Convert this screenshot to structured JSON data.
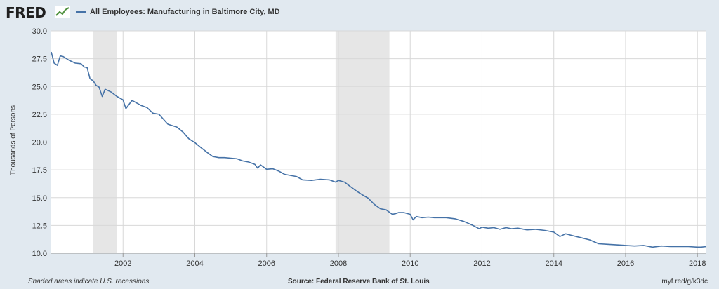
{
  "header": {
    "logo_text": "FRED",
    "logo_icon": "chart-trend-icon",
    "legend_label": "All Employees: Manufacturing in Baltimore City, MD",
    "series_color": "#4572a7"
  },
  "footer": {
    "note": "Shaded areas indicate U.S. recessions",
    "source": "Source: Federal Reserve Bank of St. Louis",
    "link": "myf.red/g/k3dc"
  },
  "chart_data": {
    "type": "line",
    "ylabel": "Thousands of Persons",
    "ylim": [
      10.0,
      30.0
    ],
    "yticks": [
      "10.0",
      "12.5",
      "15.0",
      "17.5",
      "20.0",
      "22.5",
      "25.0",
      "27.5",
      "30.0"
    ],
    "xlim": [
      2000.0,
      2018.25
    ],
    "xticks": [
      "2002",
      "2004",
      "2006",
      "2008",
      "2010",
      "2012",
      "2014",
      "2016",
      "2018"
    ],
    "grid": true,
    "recessions": [
      [
        2001.17,
        2001.83
      ],
      [
        2007.92,
        2009.42
      ]
    ],
    "recession_color": "#e6e6e6",
    "series": [
      {
        "x": [
          2000.0,
          2000.08,
          2000.17,
          2000.25,
          2000.33,
          2000.5,
          2000.67,
          2000.83,
          2000.92,
          2001.0,
          2001.08,
          2001.17,
          2001.25,
          2001.33,
          2001.42,
          2001.5,
          2001.67,
          2001.83,
          2002.0,
          2002.08,
          2002.25,
          2002.5,
          2002.67,
          2002.83,
          2003.0,
          2003.25,
          2003.5,
          2003.67,
          2003.83,
          2004.0,
          2004.17,
          2004.33,
          2004.5,
          2004.67,
          2004.83,
          2005.0,
          2005.17,
          2005.33,
          2005.5,
          2005.67,
          2005.75,
          2005.83,
          2006.0,
          2006.17,
          2006.33,
          2006.5,
          2006.67,
          2006.83,
          2007.0,
          2007.25,
          2007.5,
          2007.75,
          2007.92,
          2008.0,
          2008.17,
          2008.33,
          2008.5,
          2008.67,
          2008.83,
          2009.0,
          2009.17,
          2009.33,
          2009.5,
          2009.58,
          2009.67,
          2009.83,
          2010.0,
          2010.08,
          2010.17,
          2010.33,
          2010.5,
          2010.67,
          2010.83,
          2011.0,
          2011.25,
          2011.5,
          2011.75,
          2011.92,
          2012.0,
          2012.17,
          2012.33,
          2012.5,
          2012.67,
          2012.83,
          2013.0,
          2013.25,
          2013.5,
          2013.75,
          2013.92,
          2014.0,
          2014.17,
          2014.33,
          2014.5,
          2014.75,
          2015.0,
          2015.25,
          2015.5,
          2015.75,
          2016.0,
          2016.25,
          2016.5,
          2016.75,
          2017.0,
          2017.25,
          2017.5,
          2017.75,
          2018.0,
          2018.1,
          2018.25
        ],
        "values": [
          28.1,
          27.1,
          26.9,
          27.75,
          27.7,
          27.35,
          27.1,
          27.05,
          26.75,
          26.7,
          25.7,
          25.5,
          25.1,
          24.95,
          24.1,
          24.75,
          24.5,
          24.1,
          23.8,
          23.0,
          23.75,
          23.3,
          23.1,
          22.6,
          22.5,
          21.6,
          21.35,
          20.9,
          20.3,
          19.95,
          19.5,
          19.1,
          18.7,
          18.6,
          18.6,
          18.55,
          18.5,
          18.3,
          18.2,
          18.0,
          17.65,
          17.95,
          17.55,
          17.6,
          17.4,
          17.1,
          17.0,
          16.9,
          16.6,
          16.55,
          16.65,
          16.6,
          16.4,
          16.55,
          16.4,
          16.0,
          15.6,
          15.25,
          14.95,
          14.4,
          14.0,
          13.9,
          13.5,
          13.55,
          13.65,
          13.65,
          13.5,
          13.0,
          13.3,
          13.2,
          13.25,
          13.2,
          13.2,
          13.2,
          13.1,
          12.85,
          12.5,
          12.2,
          12.35,
          12.25,
          12.3,
          12.15,
          12.3,
          12.2,
          12.25,
          12.1,
          12.15,
          12.05,
          11.95,
          11.9,
          11.5,
          11.75,
          11.6,
          11.4,
          11.2,
          10.85,
          10.8,
          10.75,
          10.7,
          10.65,
          10.7,
          10.55,
          10.65,
          10.6,
          10.6,
          10.6,
          10.55,
          10.55,
          10.6
        ]
      }
    ]
  }
}
